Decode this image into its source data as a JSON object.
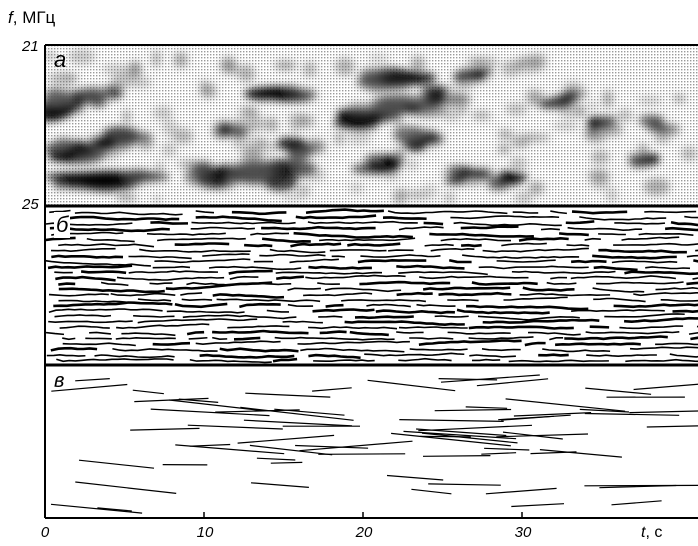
{
  "chart_data": {
    "type": "heatmap",
    "y_axis": {
      "label_symbol": "f",
      "label_unit": "МГц",
      "ticks": [
        "21",
        "25"
      ]
    },
    "x_axis": {
      "label_symbol": "t",
      "label_unit": "с",
      "ticks": [
        "0",
        "10",
        "20",
        "30"
      ],
      "range": [
        0,
        41
      ]
    },
    "panels": [
      {
        "letter": "а",
        "kind": "dynamic spectrum (grayscale)"
      },
      {
        "letter": "б",
        "kind": "detected ridge lines"
      },
      {
        "letter": "в",
        "kind": "fitted line segments"
      }
    ],
    "colors": {
      "ink": "#000000",
      "background": "#ffffff",
      "haze": "#b8b8b8"
    }
  }
}
